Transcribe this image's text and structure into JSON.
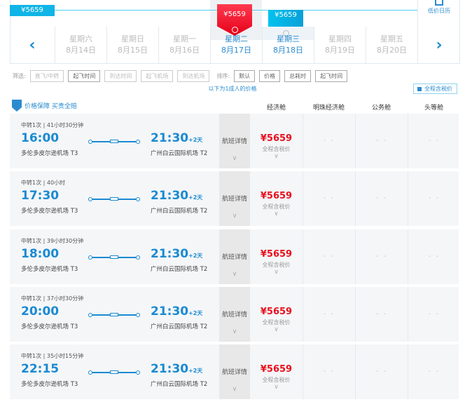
{
  "calendar": {
    "low_price": "¥5659",
    "selected_price": "¥5659",
    "next_price": "¥5659",
    "low_calendar_label": "低价日历",
    "days": [
      {
        "weekday": "星期六",
        "date": "8月14日"
      },
      {
        "weekday": "星期日",
        "date": "8月15日"
      },
      {
        "weekday": "星期一",
        "date": "8月16日"
      },
      {
        "weekday": "星期二",
        "date": "8月17日"
      },
      {
        "weekday": "星期三",
        "date": "8月18日"
      },
      {
        "weekday": "星期四",
        "date": "8月19日"
      },
      {
        "weekday": "星期五",
        "date": "8月20日"
      }
    ],
    "prev_icon": "chevron-left-icon",
    "next_icon": "chevron-right-icon",
    "colors": {
      "selected": "#e8101e",
      "accent": "#1a8ad2",
      "cyan": "#10b4e6"
    }
  },
  "filters": {
    "label": "筛选:",
    "items": [
      "直飞/中转",
      "起飞时间",
      "到达时间",
      "起飞机场",
      "到达机场"
    ]
  },
  "sort": {
    "label": "排序:",
    "items": [
      "默认",
      "价格",
      "总耗时",
      "起飞时间"
    ]
  },
  "note": "以下为1成人的价格",
  "tax_toggle": "全程含税价",
  "guarantee": "价格保障 买贵全赔",
  "columns": [
    "经济舱",
    "明珠经济舱",
    "公务舱",
    "头等舱"
  ],
  "flights": [
    {
      "meta": "中转1次 | 41小时30分钟",
      "dep": "16:00",
      "dep_airport": "多伦多皮尔逊机场 T3",
      "arr": "21:30",
      "plus": "+2天",
      "arr_airport": "广州白云国际机场 T2",
      "detail": "航班详情",
      "price": "¥5659",
      "tax": "全程含税价",
      "na": "- -"
    },
    {
      "meta": "中转1次 | 40小时",
      "dep": "17:30",
      "dep_airport": "多伦多皮尔逊机场 T3",
      "arr": "21:30",
      "plus": "+2天",
      "arr_airport": "广州白云国际机场 T2",
      "detail": "航班详情",
      "price": "¥5659",
      "tax": "全程含税价",
      "na": "- -"
    },
    {
      "meta": "中转1次 | 39小时30分钟",
      "dep": "18:00",
      "dep_airport": "多伦多皮尔逊机场 T3",
      "arr": "21:30",
      "plus": "+2天",
      "arr_airport": "广州白云国际机场 T2",
      "detail": "航班详情",
      "price": "¥5659",
      "tax": "全程含税价",
      "na": "- -"
    },
    {
      "meta": "中转1次 | 37小时30分钟",
      "dep": "20:00",
      "dep_airport": "多伦多皮尔逊机场 T3",
      "arr": "21:30",
      "plus": "+2天",
      "arr_airport": "广州白云国际机场 T2",
      "detail": "航班详情",
      "price": "¥5659",
      "tax": "全程含税价",
      "na": "- -"
    },
    {
      "meta": "中转1次 | 35小时15分钟",
      "dep": "22:15",
      "dep_airport": "多伦多皮尔逊机场 T3",
      "arr": "21:30",
      "plus": "+2天",
      "arr_airport": "广州白云国际机场 T2",
      "detail": "航班详情",
      "price": "¥5659",
      "tax": "全程含税价",
      "na": "- -"
    }
  ]
}
